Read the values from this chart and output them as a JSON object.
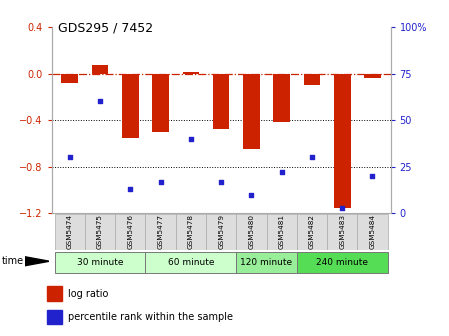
{
  "title": "GDS295 / 7452",
  "samples": [
    "GSM5474",
    "GSM5475",
    "GSM5476",
    "GSM5477",
    "GSM5478",
    "GSM5479",
    "GSM5480",
    "GSM5481",
    "GSM5482",
    "GSM5483",
    "GSM5484"
  ],
  "log_ratio": [
    -0.08,
    0.07,
    -0.55,
    -0.5,
    0.01,
    -0.48,
    -0.65,
    -0.42,
    -0.1,
    -1.15,
    -0.04
  ],
  "percentile": [
    30,
    60,
    13,
    17,
    40,
    17,
    10,
    22,
    30,
    3,
    20
  ],
  "ylim_left": [
    -1.2,
    0.4
  ],
  "ylim_right": [
    0,
    100
  ],
  "yticks_left": [
    -1.2,
    -0.8,
    -0.4,
    0.0,
    0.4
  ],
  "yticks_right": [
    0,
    25,
    50,
    75,
    100
  ],
  "ytick_labels_right": [
    "0",
    "25",
    "50",
    "75",
    "100%"
  ],
  "bar_color": "#CC2200",
  "scatter_color": "#2222CC",
  "hline_y": 0.0,
  "dotted_lines": [
    -0.4,
    -0.8
  ],
  "time_groups": [
    {
      "label": "30 minute",
      "start": 0,
      "end": 3,
      "color": "#ccffcc"
    },
    {
      "label": "60 minute",
      "start": 3,
      "end": 6,
      "color": "#ccffcc"
    },
    {
      "label": "120 minute",
      "start": 6,
      "end": 8,
      "color": "#99ee99"
    },
    {
      "label": "240 minute",
      "start": 8,
      "end": 11,
      "color": "#55dd55"
    }
  ],
  "legend_bar_label": "log ratio",
  "legend_scatter_label": "percentile rank within the sample",
  "time_label": "time",
  "background_color": "#ffffff",
  "plot_bg": "#ffffff",
  "tick_color_left": "#CC2200",
  "tick_color_right": "#2222CC",
  "label_bg": "#dddddd",
  "label_edge": "#aaaaaa"
}
